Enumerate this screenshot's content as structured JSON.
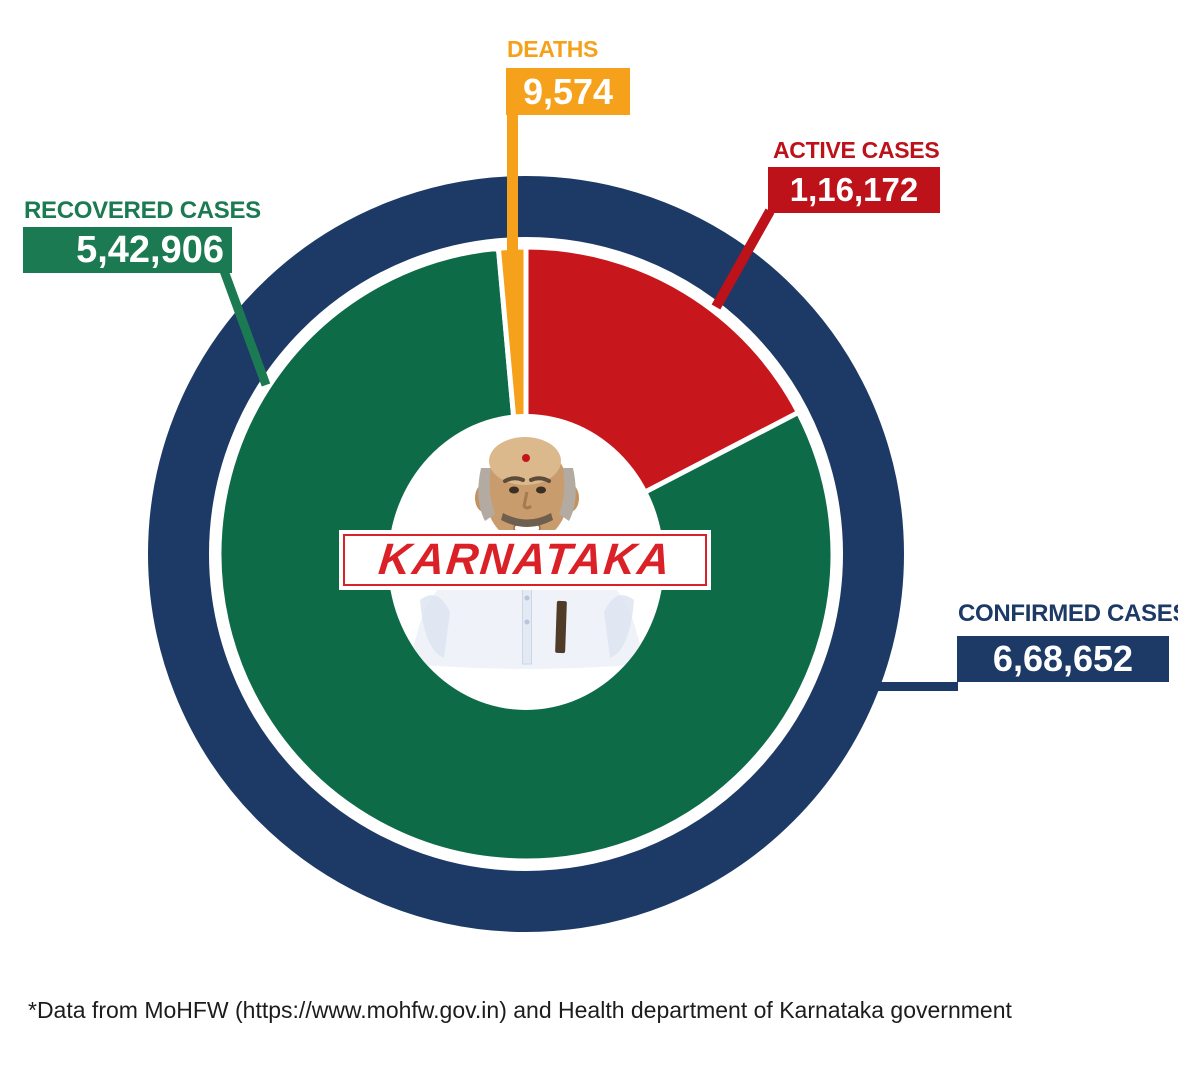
{
  "chart_data": {
    "type": "pie",
    "variant": "donut-with-outer-ring",
    "center_label": "KARNATAKA",
    "direction": "clockwise",
    "start_angle_deg": 0,
    "legend_position": "callout-labels",
    "total": {
      "label": "CONFIRMED CASES",
      "value": 668652,
      "display": "6,68,652",
      "color": "#1d3a66"
    },
    "slices": [
      {
        "label": "ACTIVE CASES",
        "value": 116172,
        "display": "1,16,172",
        "color": "#c8161d",
        "label_color": "#bd1219"
      },
      {
        "label": "RECOVERED CASES",
        "value": 542906,
        "display": "5,42,906",
        "color": "#0e6b48",
        "label_color": "#1b7a52"
      },
      {
        "label": "DEATHS",
        "value": 9574,
        "display": "9,574",
        "color": "#f6a11b",
        "label_color": "#f6a11b"
      }
    ],
    "order_note": "clockwise from 12 o'clock: active, recovered, deaths; outer navy ring represents confirmed total"
  },
  "banner": {
    "text_color": "#da2128",
    "border_color": "#da2128"
  },
  "footer": {
    "note": "*Data from MoHFW (https://www.mohfw.gov.in) and Health department of Karnataka government"
  }
}
